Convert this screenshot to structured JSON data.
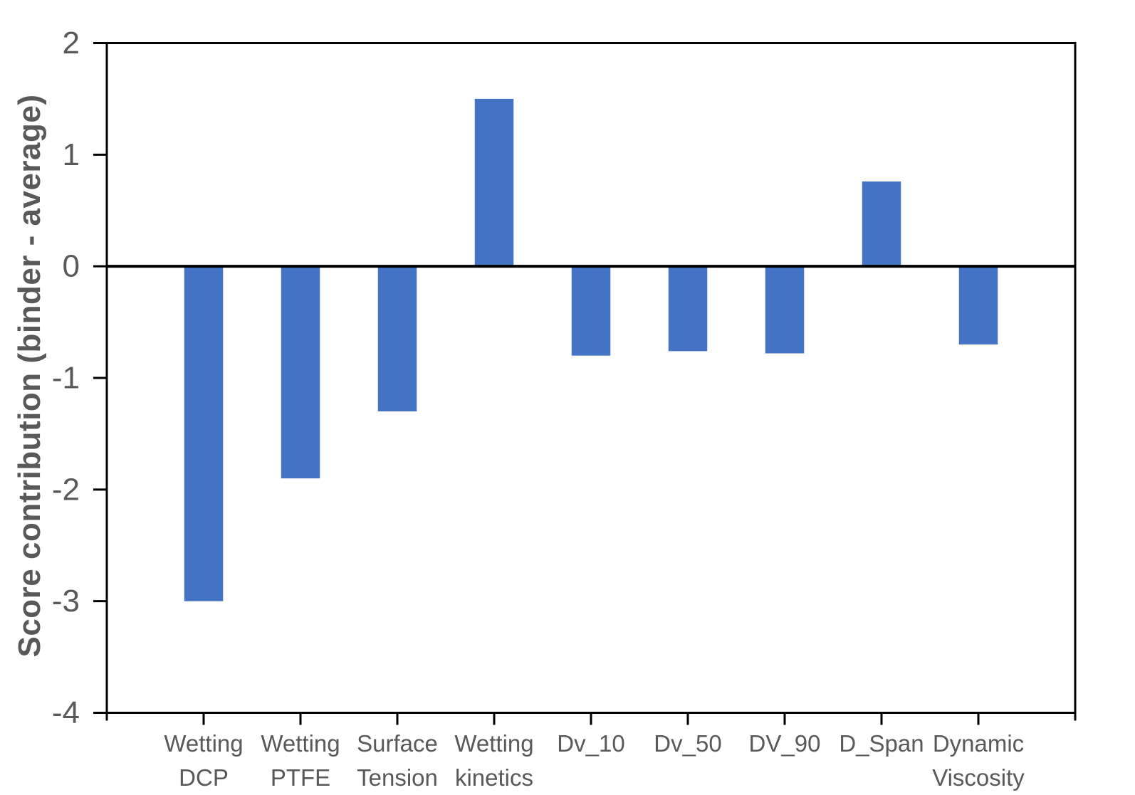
{
  "chart_data": {
    "type": "bar",
    "title": "",
    "xlabel": "",
    "ylabel": "Score contribution (binder - average)",
    "categories": [
      "Wetting DCP",
      "Wetting PTFE",
      "Surface Tension",
      "Wetting kinetics",
      "Dv_10",
      "Dv_50",
      "DV_90",
      "D_Span",
      "Dynamic Viscosity"
    ],
    "values": [
      -3.0,
      -1.9,
      -1.3,
      1.5,
      -0.8,
      -0.76,
      -0.78,
      0.76,
      -0.7
    ],
    "ylim": [
      -4,
      2
    ],
    "yticks": [
      2,
      1,
      0,
      -1,
      -2,
      -3,
      -4
    ],
    "grid": false,
    "legend_position": "none",
    "zero_line": true,
    "bar_color": "#4472C4",
    "axis_color": "#000000",
    "text_color": "#595959",
    "background_color": "#FFFFFF"
  }
}
